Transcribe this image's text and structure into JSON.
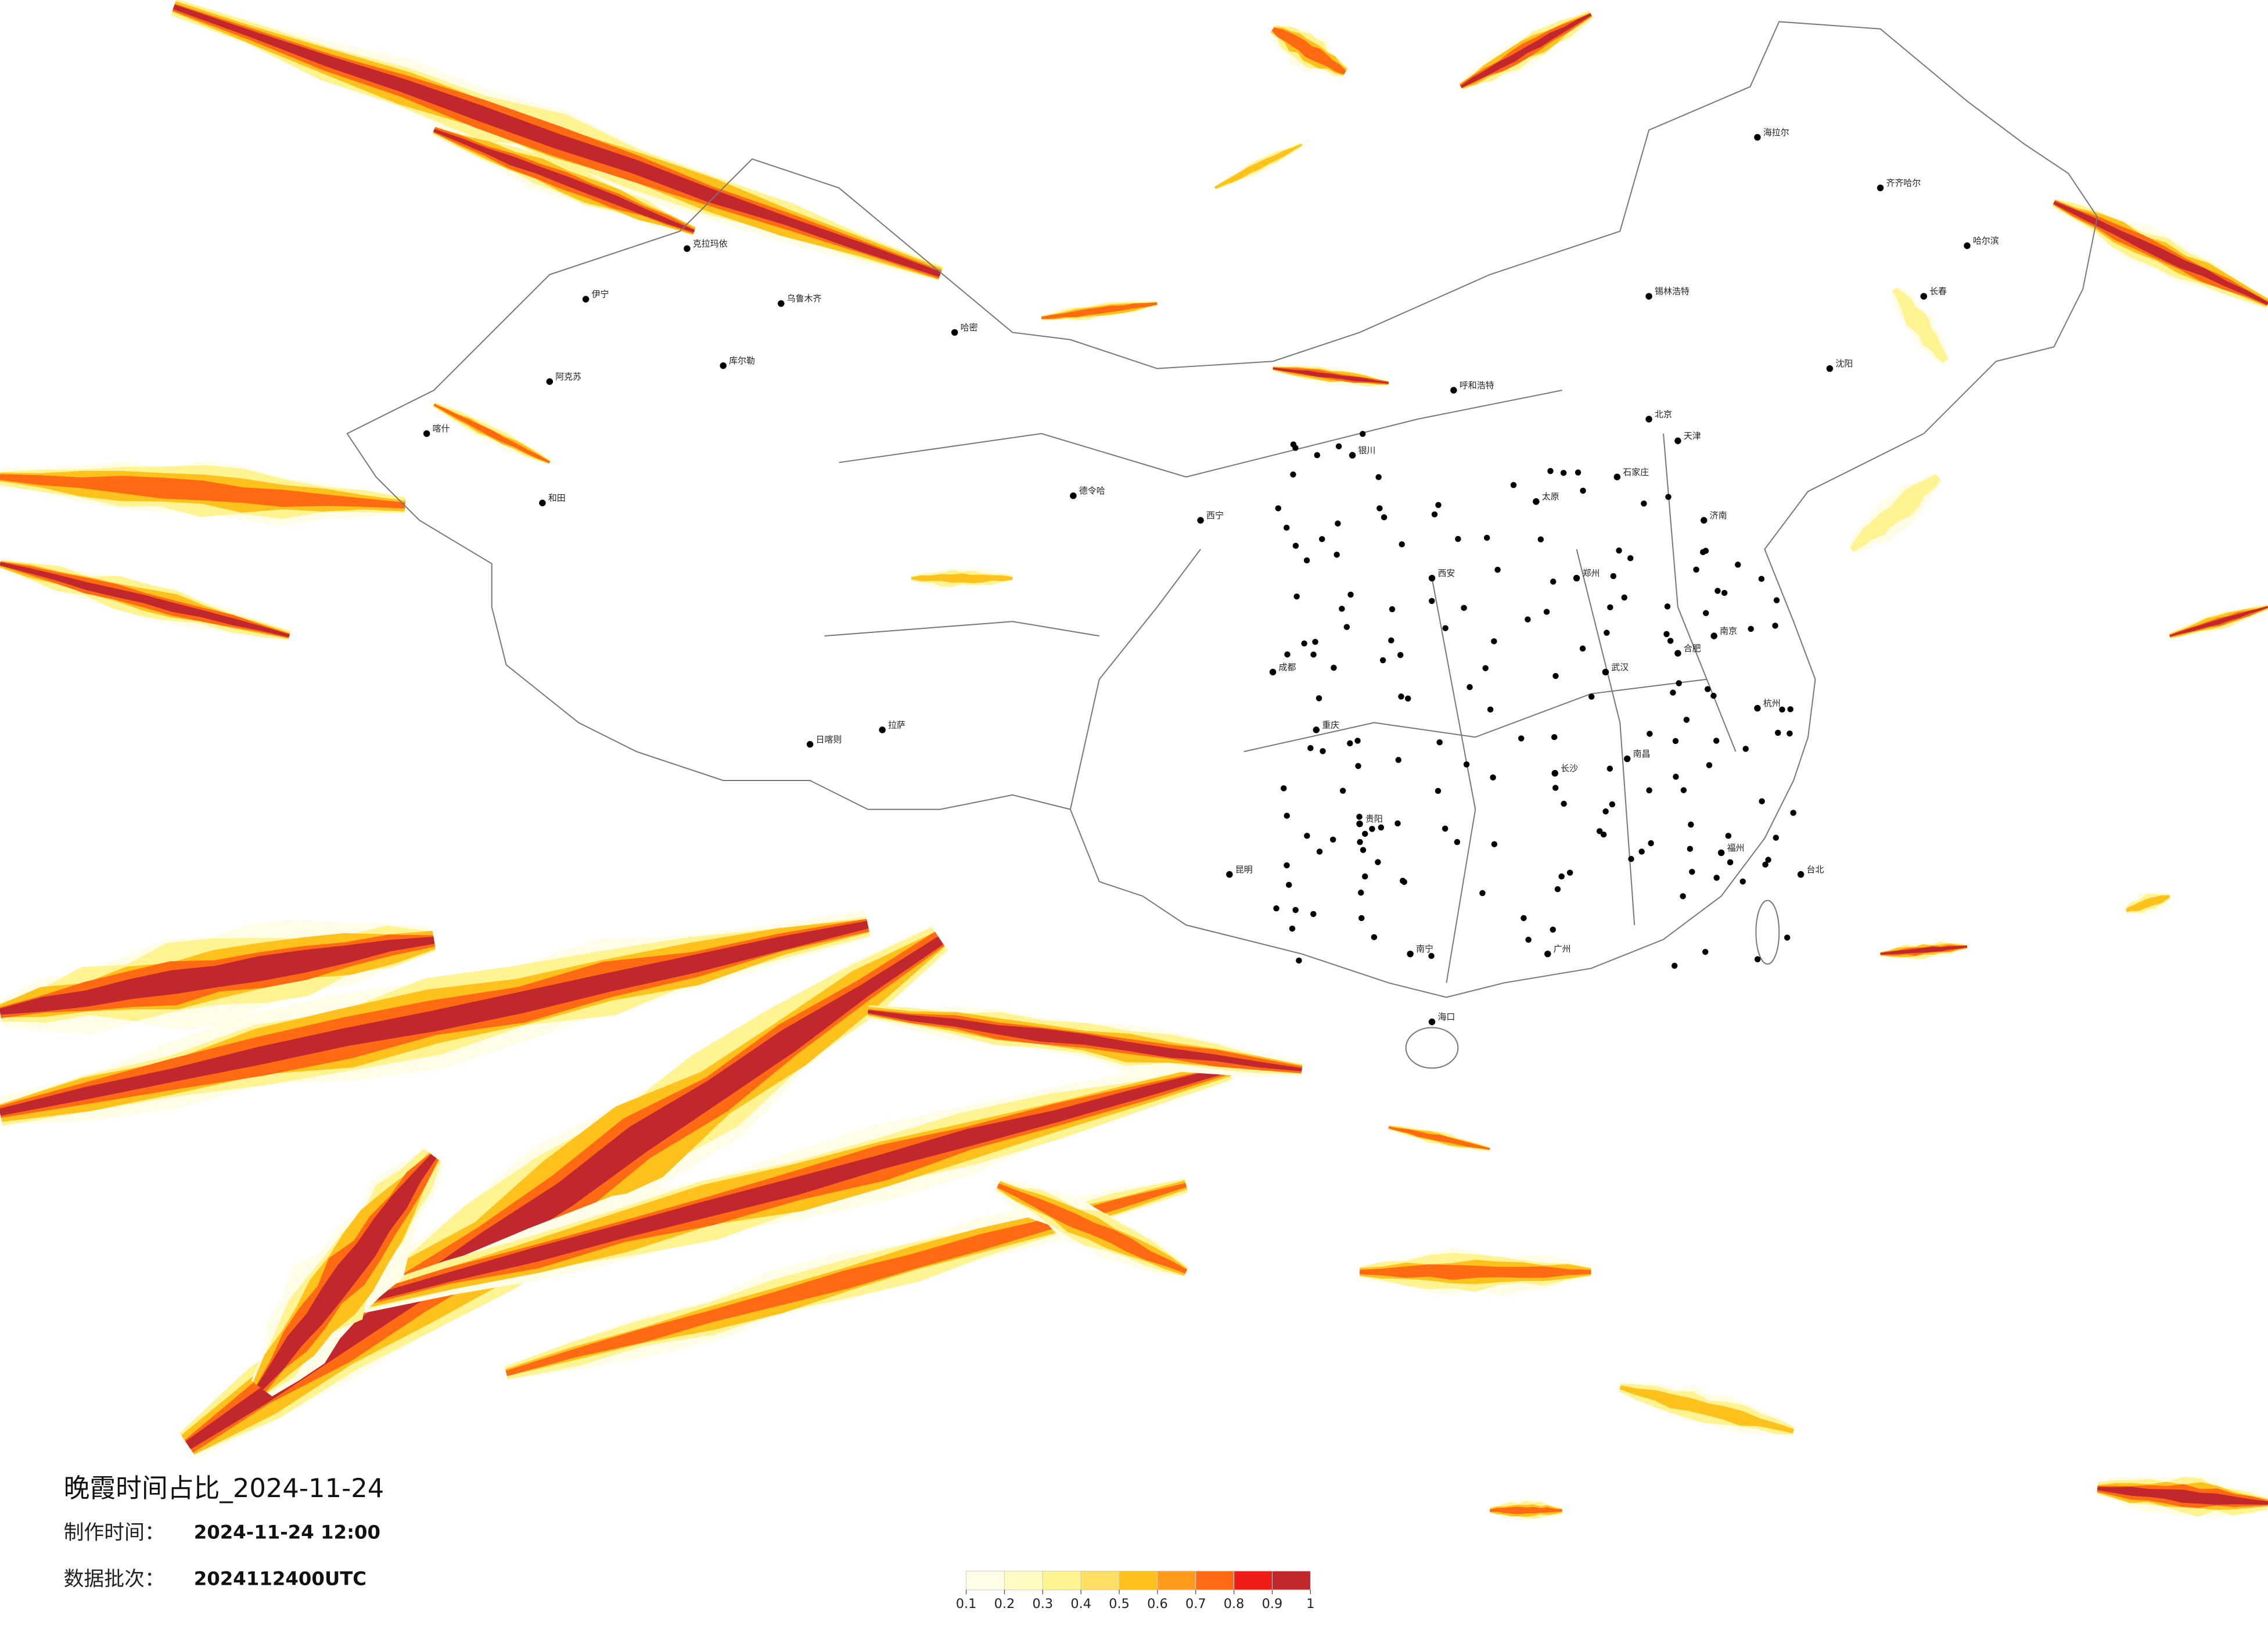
{
  "title": "晚霞时间占比_2024-11-24",
  "made_time": {
    "label": "制作时间：",
    "value": "2024-11-24 12:00"
  },
  "batch": {
    "label": "数据批次：",
    "value": "2024112400UTC"
  },
  "legend": {
    "colors": [
      "#fffde8",
      "#fffbc2",
      "#fff392",
      "#ffdf63",
      "#ffc21c",
      "#ff9a1a",
      "#ff6a12",
      "#f01c16",
      "#c0282e"
    ],
    "ticks": [
      0.1,
      0.2,
      0.3,
      0.4,
      0.5,
      0.6,
      0.7,
      0.8,
      0.9,
      1
    ]
  },
  "cities": [
    "乌鲁木齐",
    "伊宁",
    "阿克苏",
    "喀什",
    "和田",
    "哈密",
    "库尔勒",
    "克拉玛依",
    "拉萨",
    "日喀则",
    "西宁",
    "德令哈",
    "呼和浩特",
    "北京",
    "天津",
    "石家庄",
    "太原",
    "济南",
    "郑州",
    "西安",
    "武汉",
    "长沙",
    "南昌",
    "南京",
    "合肥",
    "杭州",
    "福州",
    "广州",
    "南宁",
    "贵阳",
    "昆明",
    "重庆",
    "成都",
    "海口",
    "台北",
    "哈尔滨",
    "长春",
    "沈阳",
    "齐齐哈尔",
    "海拉尔",
    "锡林浩特",
    "银川"
  ]
}
